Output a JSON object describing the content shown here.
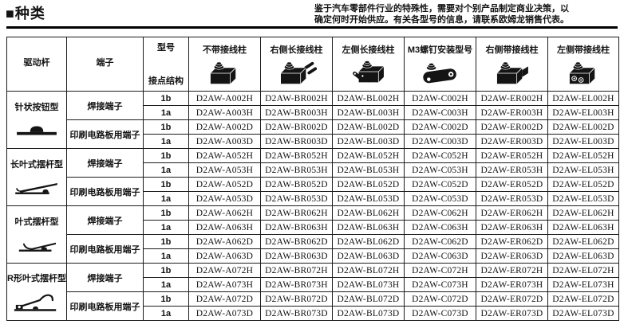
{
  "page": {
    "title": "■种类",
    "note_line1": "鉴于汽车零部件行业的特殊性，需要对个别产品制定商业决策，以",
    "note_line2": "确定何时开始供应。有关各型号的信息，请联系欧姆龙销售代表。"
  },
  "table": {
    "header": {
      "drive_lever": "驱动杆",
      "terminal": "端子",
      "model": "型号",
      "contact_structure": "接点结构",
      "product_columns": [
        {
          "label": "不带接线柱",
          "icon": "switch-no-terminal-icon"
        },
        {
          "label": "右侧长接线柱",
          "icon": "switch-right-long-terminal-icon"
        },
        {
          "label": "左侧长接线柱",
          "icon": "switch-left-long-terminal-icon"
        },
        {
          "label": "M3螺钉安装型号",
          "icon": "switch-m3-screw-icon"
        },
        {
          "label": "右侧带接线柱",
          "icon": "switch-right-terminal-icon"
        },
        {
          "label": "左侧带接线柱",
          "icon": "switch-left-terminal-icon"
        }
      ]
    },
    "groups": [
      {
        "lever": "针状按钮型",
        "lever_icon": "pin-plunger-icon",
        "terminals": [
          {
            "name": "焊接端子",
            "rows": [
              {
                "contact": "1b",
                "models": [
                  "D2AW-A002H",
                  "D2AW-BR002H",
                  "D2AW-BL002H",
                  "D2AW-C002H",
                  "D2AW-ER002H",
                  "D2AW-EL002H"
                ]
              },
              {
                "contact": "1a",
                "models": [
                  "D2AW-A003H",
                  "D2AW-BR003H",
                  "D2AW-BL003H",
                  "D2AW-C003H",
                  "D2AW-ER003H",
                  "D2AW-EL003H"
                ]
              }
            ]
          },
          {
            "name": "印刷电路板用端子",
            "rows": [
              {
                "contact": "1b",
                "models": [
                  "D2AW-A002D",
                  "D2AW-BR002D",
                  "D2AW-BL002D",
                  "D2AW-C002D",
                  "D2AW-ER002D",
                  "D2AW-EL002D"
                ]
              },
              {
                "contact": "1a",
                "models": [
                  "D2AW-A003D",
                  "D2AW-BR003D",
                  "D2AW-BL003D",
                  "D2AW-C003D",
                  "D2AW-ER003D",
                  "D2AW-EL003D"
                ]
              }
            ]
          }
        ]
      },
      {
        "lever": "长叶式摆杆型",
        "lever_icon": "long-hinge-lever-icon",
        "terminals": [
          {
            "name": "焊接端子",
            "rows": [
              {
                "contact": "1b",
                "models": [
                  "D2AW-A052H",
                  "D2AW-BR052H",
                  "D2AW-BL052H",
                  "D2AW-C052H",
                  "D2AW-ER052H",
                  "D2AW-EL052H"
                ]
              },
              {
                "contact": "1a",
                "models": [
                  "D2AW-A053H",
                  "D2AW-BR053H",
                  "D2AW-BL053H",
                  "D2AW-C053H",
                  "D2AW-ER053H",
                  "D2AW-EL053H"
                ]
              }
            ]
          },
          {
            "name": "印刷电路板用端子",
            "rows": [
              {
                "contact": "1b",
                "models": [
                  "D2AW-A052D",
                  "D2AW-BR052D",
                  "D2AW-BL052D",
                  "D2AW-C052D",
                  "D2AW-ER052D",
                  "D2AW-EL052D"
                ]
              },
              {
                "contact": "1a",
                "models": [
                  "D2AW-A053D",
                  "D2AW-BR053D",
                  "D2AW-BL053D",
                  "D2AW-C053D",
                  "D2AW-ER053D",
                  "D2AW-EL053D"
                ]
              }
            ]
          }
        ]
      },
      {
        "lever": "叶式摆杆型",
        "lever_icon": "hinge-lever-icon",
        "terminals": [
          {
            "name": "焊接端子",
            "rows": [
              {
                "contact": "1b",
                "models": [
                  "D2AW-A062H",
                  "D2AW-BR062H",
                  "D2AW-BL062H",
                  "D2AW-C062H",
                  "D2AW-ER062H",
                  "D2AW-EL062H"
                ]
              },
              {
                "contact": "1a",
                "models": [
                  "D2AW-A063H",
                  "D2AW-BR063H",
                  "D2AW-BL063H",
                  "D2AW-C063H",
                  "D2AW-ER063H",
                  "D2AW-EL063H"
                ]
              }
            ]
          },
          {
            "name": "印刷电路板用端子",
            "rows": [
              {
                "contact": "1b",
                "models": [
                  "D2AW-A062D",
                  "D2AW-BR062D",
                  "D2AW-BL062D",
                  "D2AW-C062D",
                  "D2AW-ER062D",
                  "D2AW-EL062D"
                ]
              },
              {
                "contact": "1a",
                "models": [
                  "D2AW-A063D",
                  "D2AW-BR063D",
                  "D2AW-BL063D",
                  "D2AW-C063D",
                  "D2AW-ER063D",
                  "D2AW-EL063D"
                ]
              }
            ]
          }
        ]
      },
      {
        "lever": "R形叶式摆杆型",
        "lever_icon": "r-hinge-lever-icon",
        "terminals": [
          {
            "name": "焊接端子",
            "rows": [
              {
                "contact": "1b",
                "models": [
                  "D2AW-A072H",
                  "D2AW-BR072H",
                  "D2AW-BL072H",
                  "D2AW-C072H",
                  "D2AW-ER072H",
                  "D2AW-EL072H"
                ]
              },
              {
                "contact": "1a",
                "models": [
                  "D2AW-A073H",
                  "D2AW-BR073H",
                  "D2AW-BL073H",
                  "D2AW-C073H",
                  "D2AW-ER073H",
                  "D2AW-EL073H"
                ]
              }
            ]
          },
          {
            "name": "印刷电路板用端子",
            "rows": [
              {
                "contact": "1b",
                "models": [
                  "D2AW-A072D",
                  "D2AW-BR072D",
                  "D2AW-BL072D",
                  "D2AW-C072D",
                  "D2AW-ER072D",
                  "D2AW-EL072D"
                ]
              },
              {
                "contact": "1a",
                "models": [
                  "D2AW-A073D",
                  "D2AW-BR073D",
                  "D2AW-BL073D",
                  "D2AW-C073D",
                  "D2AW-ER073D",
                  "D2AW-EL073D"
                ]
              }
            ]
          }
        ]
      }
    ]
  }
}
